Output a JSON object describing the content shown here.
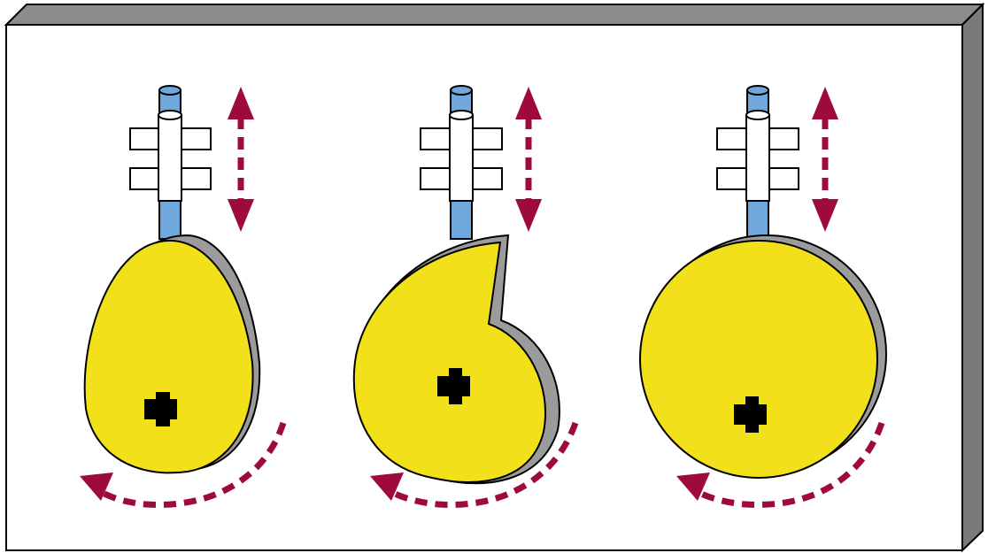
{
  "colors": {
    "board_face": "#ffffff",
    "board_top": "#8c8c8c",
    "board_side": "#7a7a7a",
    "cam_fill": "#f2e11a",
    "cam_shadow": "#9b9b9b",
    "follower_rod": "#6fa8dc",
    "guide": "#ffffff",
    "arrow": "#9e0a3c",
    "hub": "#000000"
  },
  "cams": [
    {
      "kind": "pear"
    },
    {
      "kind": "snail"
    },
    {
      "kind": "eccentric"
    }
  ]
}
